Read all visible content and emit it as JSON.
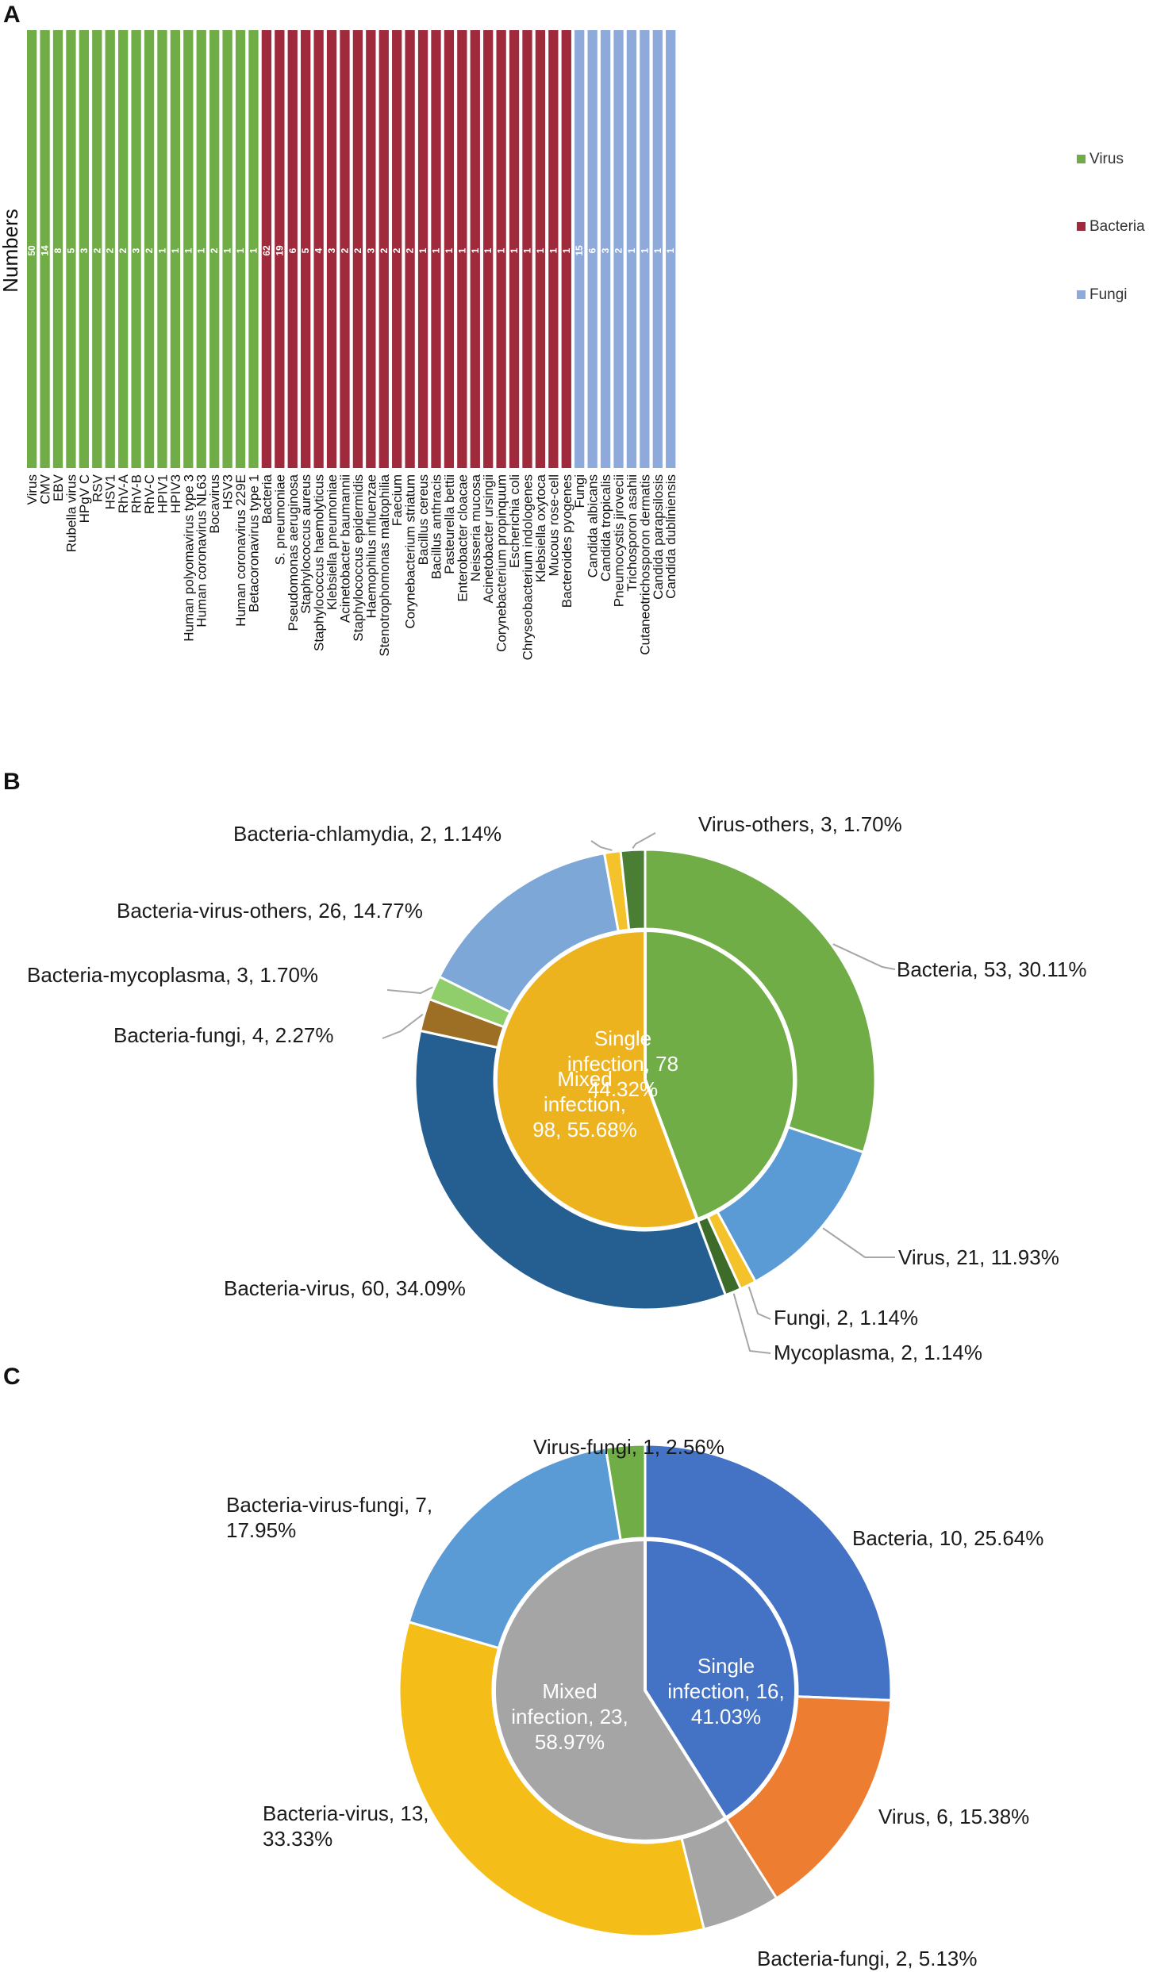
{
  "chart_data": [
    {
      "panel": "A",
      "type": "bar",
      "ylabel": "Numbers",
      "xlabel": "",
      "legend": [
        {
          "name": "Virus",
          "color": "#70ad47"
        },
        {
          "name": "Bacteria",
          "color": "#9e2a3b"
        },
        {
          "name": "Fungi",
          "color": "#8eaadb"
        }
      ],
      "bars": [
        {
          "label": "Virus",
          "value": "50",
          "group": "Virus"
        },
        {
          "label": "CMV",
          "value": "14",
          "group": "Virus"
        },
        {
          "label": "EBV",
          "value": "8",
          "group": "Virus"
        },
        {
          "label": "Rubella virus",
          "value": "5",
          "group": "Virus"
        },
        {
          "label": "HPgV C",
          "value": "3",
          "group": "Virus"
        },
        {
          "label": "RSV",
          "value": "2",
          "group": "Virus"
        },
        {
          "label": "HSV1",
          "value": "2",
          "group": "Virus"
        },
        {
          "label": "RhV-A",
          "value": "2",
          "group": "Virus"
        },
        {
          "label": "RhV-B",
          "value": "3",
          "group": "Virus"
        },
        {
          "label": "RhV-C",
          "value": "2",
          "group": "Virus"
        },
        {
          "label": "HPIV1",
          "value": "1",
          "group": "Virus"
        },
        {
          "label": "HPIV3",
          "value": "1",
          "group": "Virus"
        },
        {
          "label": "Human polyomavirus type 3",
          "value": "1",
          "group": "Virus"
        },
        {
          "label": "Human coronavirus NL63",
          "value": "1",
          "group": "Virus"
        },
        {
          "label": "Bocavirus",
          "value": "2",
          "group": "Virus"
        },
        {
          "label": "HSV3",
          "value": "1",
          "group": "Virus"
        },
        {
          "label": "Human coronavirus 229E",
          "value": "1",
          "group": "Virus"
        },
        {
          "label": "Betacoronavirus type 1",
          "value": "1",
          "group": "Virus"
        },
        {
          "label": "Bacteria",
          "value": "62",
          "group": "Bacteria"
        },
        {
          "label": "S. pneumoniae",
          "value": "19",
          "group": "Bacteria"
        },
        {
          "label": "Pseudomonas aeruginosa",
          "value": "6",
          "group": "Bacteria"
        },
        {
          "label": "Staphylococcus aureus",
          "value": "5",
          "group": "Bacteria"
        },
        {
          "label": "Staphylococcus haemolyticus",
          "value": "4",
          "group": "Bacteria"
        },
        {
          "label": "Klebsiella pneumoniae",
          "value": "3",
          "group": "Bacteria"
        },
        {
          "label": "Acinetobacter baumannii",
          "value": "2",
          "group": "Bacteria"
        },
        {
          "label": "Staphylococcus epidermidis",
          "value": "2",
          "group": "Bacteria"
        },
        {
          "label": "Haemophilus influenzae",
          "value": "3",
          "group": "Bacteria"
        },
        {
          "label": "Stenotrophomonas maltophilia",
          "value": "2",
          "group": "Bacteria"
        },
        {
          "label": "Faecium",
          "value": "2",
          "group": "Bacteria"
        },
        {
          "label": "Corynebacterium striatum",
          "value": "2",
          "group": "Bacteria"
        },
        {
          "label": "Bacillus cereus",
          "value": "1",
          "group": "Bacteria"
        },
        {
          "label": "Bacillus anthracis",
          "value": "1",
          "group": "Bacteria"
        },
        {
          "label": "Pasteurella bettii",
          "value": "1",
          "group": "Bacteria"
        },
        {
          "label": "Enterobacter cloacae",
          "value": "1",
          "group": "Bacteria"
        },
        {
          "label": "Neisseria mucosa",
          "value": "1",
          "group": "Bacteria"
        },
        {
          "label": "Acinetobacter ursingii",
          "value": "1",
          "group": "Bacteria"
        },
        {
          "label": "Corynebacterium propinquum",
          "value": "1",
          "group": "Bacteria"
        },
        {
          "label": "Escherichia coli",
          "value": "1",
          "group": "Bacteria"
        },
        {
          "label": "Chryseobacterium indologenes",
          "value": "1",
          "group": "Bacteria"
        },
        {
          "label": "Klebsiella oxytoca",
          "value": "1",
          "group": "Bacteria"
        },
        {
          "label": "Mucous rose-cell",
          "value": "1",
          "group": "Bacteria"
        },
        {
          "label": "Bacteroides pyogenes",
          "value": "1",
          "group": "Bacteria"
        },
        {
          "label": "Fungi",
          "value": "15",
          "group": "Fungi"
        },
        {
          "label": "Candida albicans",
          "value": "6",
          "group": "Fungi"
        },
        {
          "label": "Candida tropicalis",
          "value": "3",
          "group": "Fungi"
        },
        {
          "label": "Pneumocystis jirovecii",
          "value": "2",
          "group": "Fungi"
        },
        {
          "label": "Trichosporon asahii",
          "value": "1",
          "group": "Fungi"
        },
        {
          "label": "Cutaneotrichosporon dermatis",
          "value": "1",
          "group": "Fungi"
        },
        {
          "label": "Candida parapsilosis",
          "value": "1",
          "group": "Fungi"
        },
        {
          "label": "Candida dubliniensis",
          "value": "1",
          "group": "Fungi"
        }
      ]
    },
    {
      "panel": "B",
      "type": "pie",
      "inner": [
        {
          "name": "Single infection",
          "count": 78,
          "percent": "44.32%",
          "color": "#70ad47",
          "label_lines": [
            "Single",
            "infection, 78",
            "44.32%"
          ]
        },
        {
          "name": "Mixed infection",
          "count": 98,
          "percent": "55.68%",
          "color": "#ecb31f",
          "label_lines": [
            "Mixed",
            "infection,",
            "98, 55.68%"
          ]
        }
      ],
      "outer": [
        {
          "name": "Bacteria",
          "count": 53,
          "percent": "30.11%",
          "color": "#70ad47",
          "label": "Bacteria, 53, 30.11%"
        },
        {
          "name": "Virus",
          "count": 21,
          "percent": "11.93%",
          "color": "#5b9bd5",
          "label": "Virus, 21, 11.93%"
        },
        {
          "name": "Fungi",
          "count": 2,
          "percent": "1.14%",
          "color": "#f4c22b",
          "label": "Fungi, 2, 1.14%"
        },
        {
          "name": "Mycoplasma",
          "count": 2,
          "percent": "1.14%",
          "color": "#3d6b2a",
          "label": "Mycoplasma, 2, 1.14%"
        },
        {
          "name": "Bacteria-virus",
          "count": 60,
          "percent": "34.09%",
          "color": "#255e91",
          "label": "Bacteria-virus, 60, 34.09%"
        },
        {
          "name": "Bacteria-fungi",
          "count": 4,
          "percent": "2.27%",
          "color": "#9c6f24",
          "label": "Bacteria-fungi, 4, 2.27%"
        },
        {
          "name": "Bacteria-mycoplasma",
          "count": 3,
          "percent": "1.70%",
          "color": "#8fce6b",
          "label": "Bacteria-mycoplasma, 3, 1.70%"
        },
        {
          "name": "Bacteria-virus-others",
          "count": 26,
          "percent": "14.77%",
          "color": "#7ca7d6",
          "label": "Bacteria-virus-others, 26, 14.77%"
        },
        {
          "name": "Bacteria-chlamydia",
          "count": 2,
          "percent": "1.14%",
          "color": "#f4c22b",
          "label": "Bacteria-chlamydia, 2, 1.14%"
        },
        {
          "name": "Virus-others",
          "count": 3,
          "percent": "1.70%",
          "color": "#4a7e34",
          "label": "Virus-others, 3, 1.70%"
        }
      ]
    },
    {
      "panel": "C",
      "type": "pie",
      "inner": [
        {
          "name": "Single infection",
          "count": 16,
          "percent": "41.03%",
          "color": "#4472c4",
          "label_lines": [
            "Single",
            "infection,  16,",
            "41.03%"
          ]
        },
        {
          "name": "Mixed infection",
          "count": 23,
          "percent": "58.97%",
          "color": "#a5a5a5",
          "label_lines": [
            "Mixed",
            "infection, 23,",
            "58.97%"
          ]
        }
      ],
      "outer": [
        {
          "name": "Bacteria",
          "count": 10,
          "percent": "25.64%",
          "color": "#4472c4",
          "label": "Bacteria, 10, 25.64%"
        },
        {
          "name": "Virus",
          "count": 6,
          "percent": "15.38%",
          "color": "#ed7d31",
          "label": "Virus, 6, 15.38%"
        },
        {
          "name": "Bacteria-fungi",
          "count": 2,
          "percent": "5.13%",
          "color": "#a5a5a5",
          "label": "Bacteria-fungi, 2, 5.13%"
        },
        {
          "name": "Bacteria-virus",
          "count": 13,
          "percent": "33.33%",
          "color": "#f5bd18",
          "label_lines": [
            "Bacteria-virus, 13,",
            "33.33%"
          ]
        },
        {
          "name": "Bacteria-virus-fungi",
          "count": 7,
          "percent": "17.95%",
          "color": "#5b9bd5",
          "label_lines": [
            "Bacteria-virus-fungi, 7,",
            "17.95%"
          ]
        },
        {
          "name": "Virus-fungi",
          "count": 1,
          "percent": "2.56%",
          "color": "#70ad47",
          "label": "Virus-fungi, 1, 2.56%"
        }
      ]
    }
  ]
}
